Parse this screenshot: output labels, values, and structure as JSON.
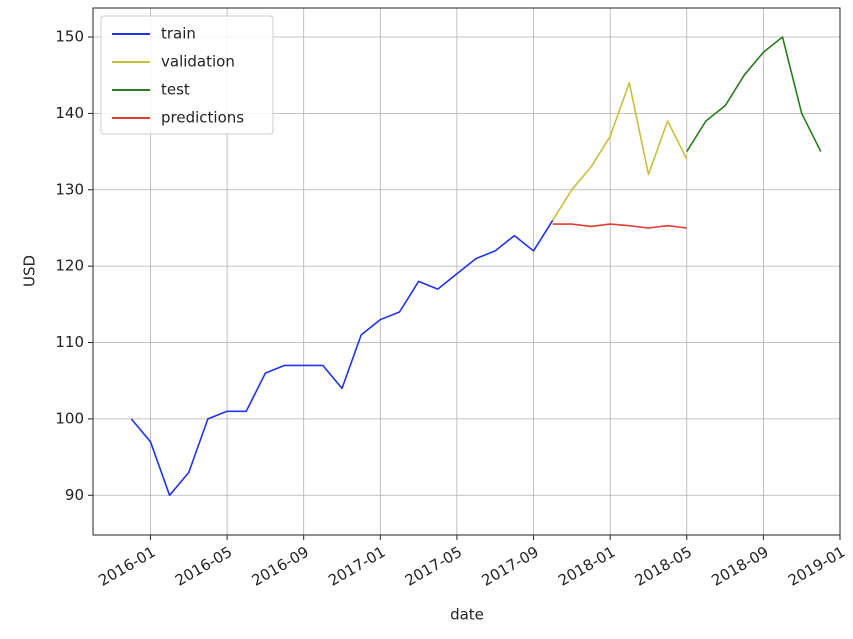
{
  "chart_data": {
    "type": "line",
    "xlabel": "date",
    "ylabel": "USD",
    "x": [
      "2015-12",
      "2016-01",
      "2016-02",
      "2016-03",
      "2016-04",
      "2016-05",
      "2016-06",
      "2016-07",
      "2016-08",
      "2016-09",
      "2016-10",
      "2016-11",
      "2016-12",
      "2017-01",
      "2017-02",
      "2017-03",
      "2017-04",
      "2017-05",
      "2017-06",
      "2017-07",
      "2017-08",
      "2017-09",
      "2017-10",
      "2017-11",
      "2017-12",
      "2018-01",
      "2018-02",
      "2018-03",
      "2018-04",
      "2018-05",
      "2018-06",
      "2018-07",
      "2018-08",
      "2018-09",
      "2018-10",
      "2018-11",
      "2018-12"
    ],
    "series": [
      {
        "name": "train",
        "color": "#2233ee",
        "values": [
          100,
          97,
          90,
          93,
          100,
          101,
          101,
          106,
          107,
          107,
          107,
          104,
          111,
          113,
          114,
          118,
          117,
          119,
          121,
          122,
          124,
          122,
          126,
          null,
          null,
          null,
          null,
          null,
          null,
          null,
          null,
          null,
          null,
          null,
          null,
          null,
          null
        ]
      },
      {
        "name": "validation",
        "color": "#c8c03c",
        "values": [
          null,
          null,
          null,
          null,
          null,
          null,
          null,
          null,
          null,
          null,
          null,
          null,
          null,
          null,
          null,
          null,
          null,
          null,
          null,
          null,
          null,
          null,
          126,
          130,
          133,
          137,
          144,
          132,
          139,
          134,
          null,
          null,
          null,
          null,
          null,
          null,
          null
        ]
      },
      {
        "name": "test",
        "color": "#2a7d1f",
        "values": [
          null,
          null,
          null,
          null,
          null,
          null,
          null,
          null,
          null,
          null,
          null,
          null,
          null,
          null,
          null,
          null,
          null,
          null,
          null,
          null,
          null,
          null,
          null,
          null,
          null,
          null,
          null,
          null,
          null,
          135,
          139,
          141,
          145,
          148,
          150,
          140,
          135
        ]
      },
      {
        "name": "predictions",
        "color": "#e03c31",
        "values": [
          null,
          null,
          null,
          null,
          null,
          null,
          null,
          null,
          null,
          null,
          null,
          null,
          null,
          null,
          null,
          null,
          null,
          null,
          null,
          null,
          null,
          null,
          125.5,
          125.5,
          125.2,
          125.5,
          125.3,
          125,
          125.3,
          125,
          null,
          null,
          null,
          null,
          null,
          null,
          null
        ]
      }
    ],
    "xlim": [
      "2015-10",
      "2019-01"
    ],
    "xticks": [
      "2016-01",
      "2016-05",
      "2016-09",
      "2017-01",
      "2017-05",
      "2017-09",
      "2018-01",
      "2018-05",
      "2018-09",
      "2019-01"
    ],
    "ylim": [
      84.8,
      153.8
    ],
    "yticks": [
      90,
      100,
      110,
      120,
      130,
      140,
      150
    ],
    "grid": true,
    "legend": "upper left"
  }
}
